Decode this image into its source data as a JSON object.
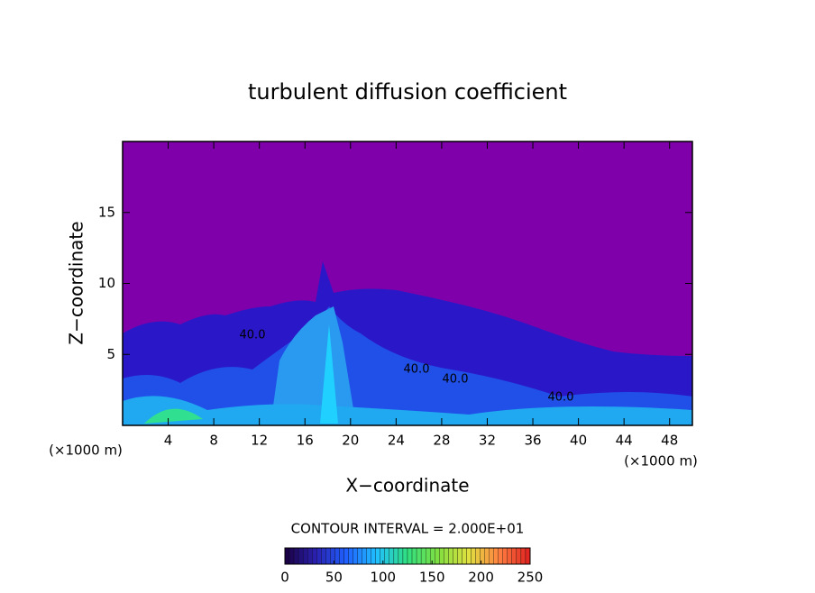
{
  "chart_data": {
    "type": "contour",
    "title": "turbulent diffusion coefficient",
    "xlabel": "X−coordinate",
    "ylabel": "Z−coordinate",
    "x_unit": "(×1000 m)",
    "xlim": [
      0,
      50
    ],
    "xticks": [
      4,
      8,
      12,
      16,
      20,
      24,
      28,
      32,
      36,
      40,
      44,
      48
    ],
    "ylim": [
      0,
      20
    ],
    "yticks": [
      5,
      10,
      15
    ],
    "contour_interval": "CONTOUR INTERVAL = 2.000E+01",
    "contour_labels": [
      "40.0",
      "40.0",
      "40.0",
      "40.0"
    ],
    "clim": [
      0,
      250
    ],
    "cticks": [
      0,
      50,
      100,
      150,
      200,
      250
    ],
    "colormap": [
      "#1a0040",
      "#2a20b0",
      "#2060ff",
      "#20c0ff",
      "#30e080",
      "#80e040",
      "#e0e040",
      "#ff8040",
      "#e02020"
    ]
  }
}
